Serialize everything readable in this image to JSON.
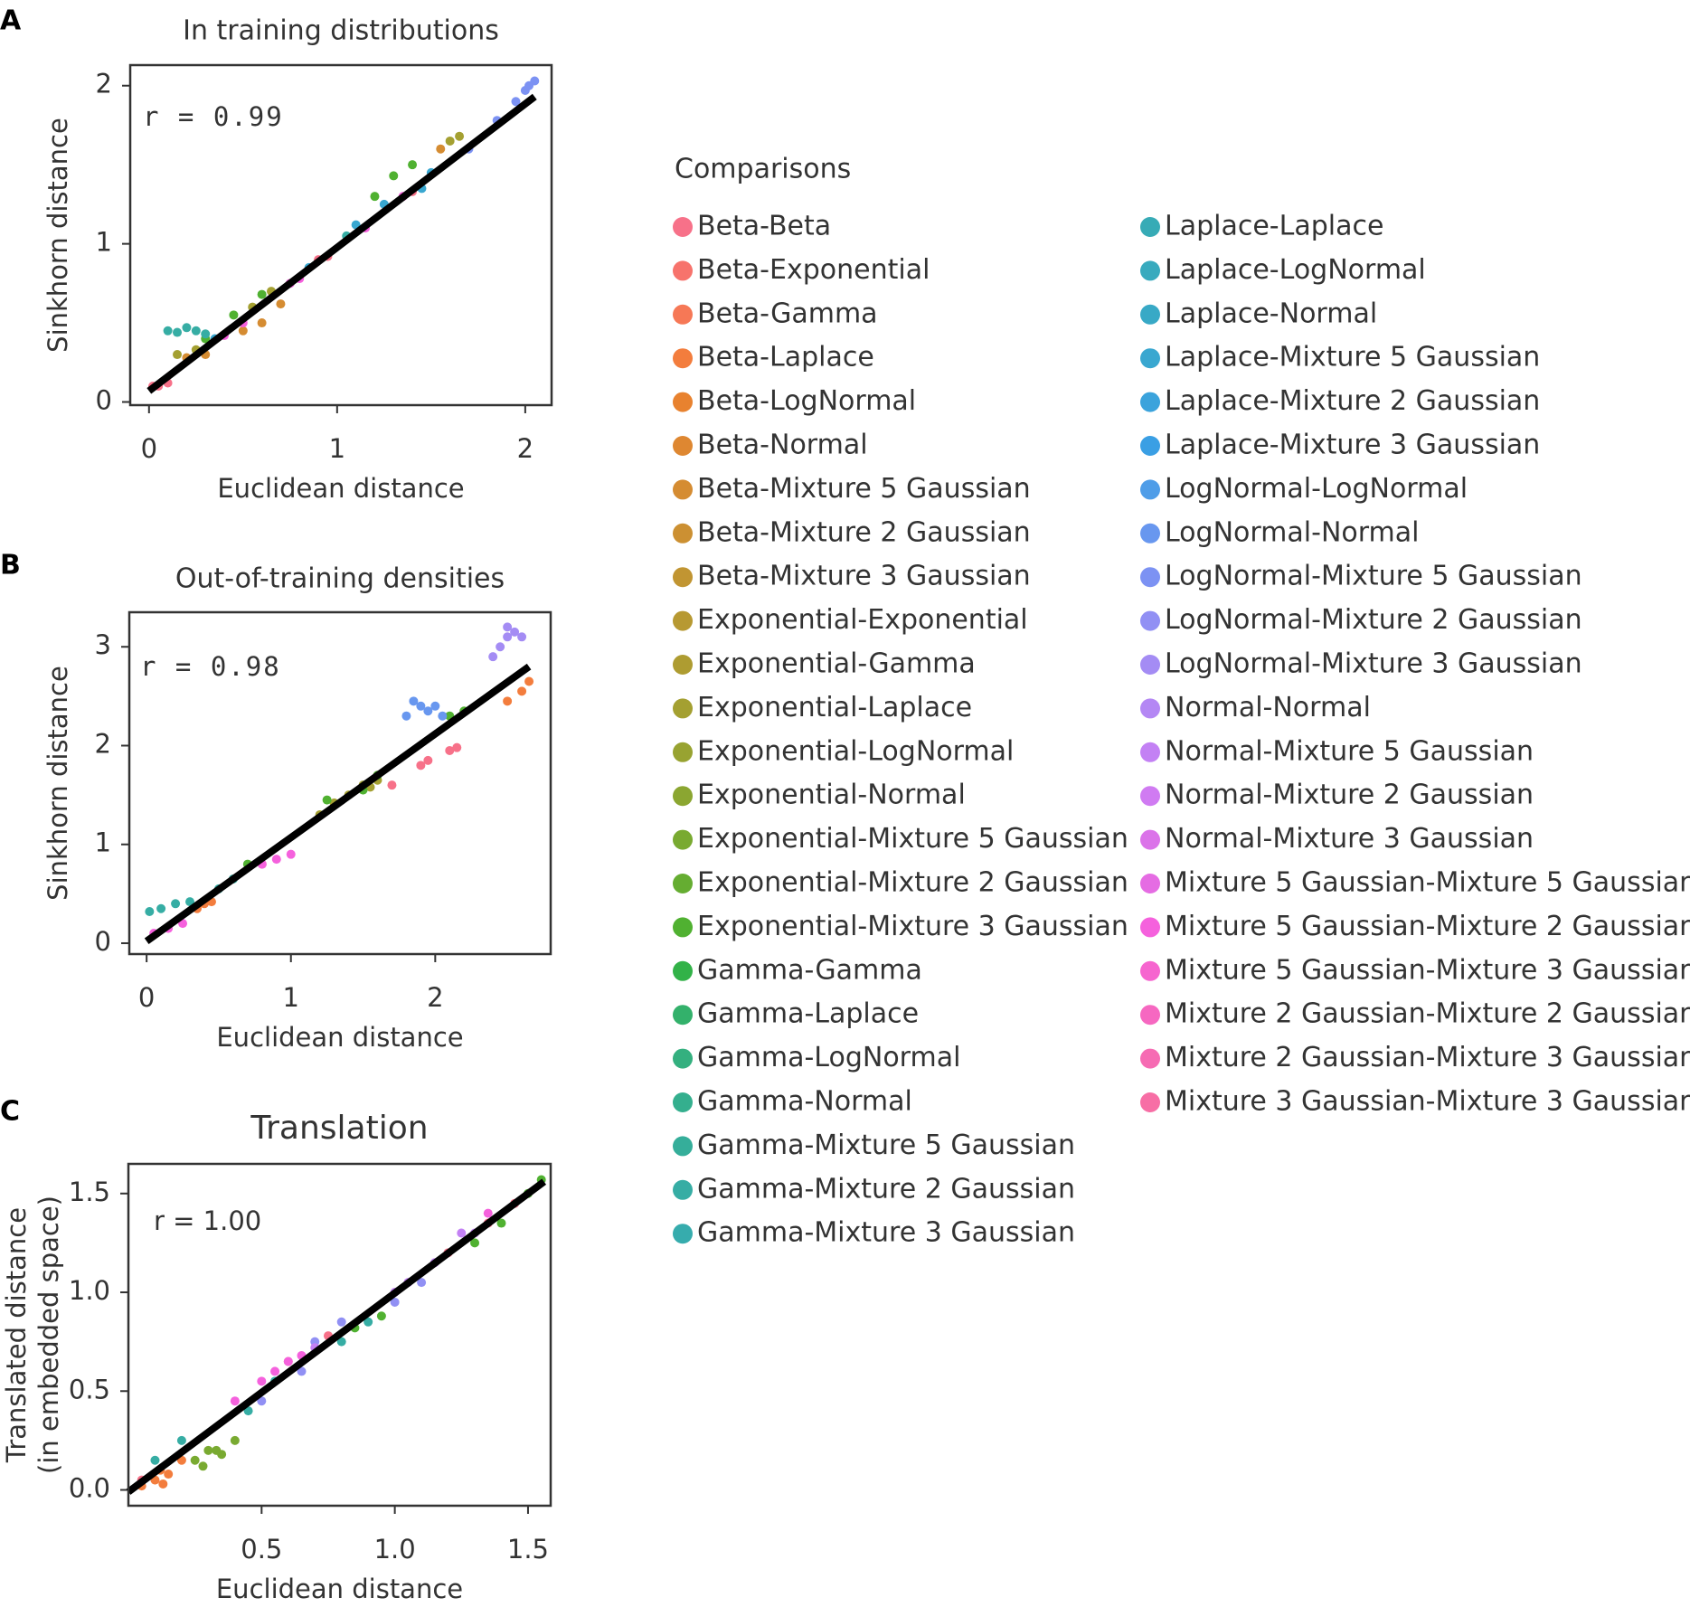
{
  "chart_data": [
    {
      "type": "scatter",
      "panel": "A",
      "title": "In training distributions",
      "xlabel": "Euclidean distance",
      "ylabel": [
        "Sinkhorn distance"
      ],
      "annotation": "r =  0.99",
      "xlim": [
        -0.1,
        2.14
      ],
      "ylim": [
        -0.02,
        2.13
      ],
      "xticks": [
        0,
        1,
        2
      ],
      "yticks": [
        0,
        1,
        2
      ],
      "fit_line": {
        "x": [
          0,
          2.05
        ],
        "y": [
          0.07,
          1.93
        ]
      },
      "series": [
        {
          "color": "#f77189",
          "x": [
            0.02,
            0.05,
            0.1,
            0.9,
            0.95,
            1.4
          ],
          "y": [
            0.1,
            0.1,
            0.12,
            0.9,
            0.92,
            1.33
          ]
        },
        {
          "color": "#d58c32",
          "x": [
            0.2,
            0.3,
            0.5,
            0.6,
            0.7,
            1.55
          ],
          "y": [
            0.28,
            0.3,
            0.45,
            0.5,
            0.62,
            1.6
          ]
        },
        {
          "color": "#a4a031",
          "x": [
            0.15,
            0.25,
            0.55,
            0.65,
            1.6,
            1.65
          ],
          "y": [
            0.3,
            0.33,
            0.6,
            0.7,
            1.65,
            1.68
          ]
        },
        {
          "color": "#50b131",
          "x": [
            0.3,
            0.45,
            0.6,
            1.2,
            1.3,
            1.4
          ],
          "y": [
            0.4,
            0.55,
            0.68,
            1.3,
            1.43,
            1.5
          ]
        },
        {
          "color": "#36ada4",
          "x": [
            0.1,
            0.15,
            0.2,
            0.25,
            0.3,
            1.05
          ],
          "y": [
            0.45,
            0.44,
            0.47,
            0.45,
            0.43,
            1.05
          ]
        },
        {
          "color": "#39a7d0",
          "x": [
            0.35,
            0.85,
            1.1,
            1.25,
            1.45,
            1.5
          ],
          "y": [
            0.4,
            0.85,
            1.12,
            1.25,
            1.35,
            1.45
          ]
        },
        {
          "color": "#7c92f3",
          "x": [
            1.7,
            1.85,
            1.95,
            2.0,
            2.02,
            2.05
          ],
          "y": [
            1.6,
            1.78,
            1.9,
            1.97,
            2.0,
            2.03
          ]
        },
        {
          "color": "#f561dd",
          "x": [
            0.4,
            0.5,
            0.75,
            0.8,
            1.15,
            1.35
          ],
          "y": [
            0.42,
            0.5,
            0.75,
            0.78,
            1.1,
            1.3
          ]
        }
      ]
    },
    {
      "type": "scatter",
      "panel": "B",
      "title": "Out-of-training densities",
      "xlabel": "Euclidean distance",
      "ylabel": [
        "Sinkhorn distance"
      ],
      "annotation": "r =  0.98",
      "xlim": [
        -0.12,
        2.8
      ],
      "ylim": [
        -0.11,
        3.35
      ],
      "xticks": [
        0,
        1,
        2
      ],
      "yticks": [
        0,
        1,
        2,
        3
      ],
      "fit_line": {
        "x": [
          0,
          2.65
        ],
        "y": [
          0.02,
          2.8
        ]
      },
      "series": [
        {
          "color": "#f77189",
          "x": [
            1.9,
            1.95,
            2.1,
            2.15,
            0.8,
            1.7
          ],
          "y": [
            1.8,
            1.85,
            1.95,
            1.98,
            0.8,
            1.6
          ]
        },
        {
          "color": "#f37d3d",
          "x": [
            0.4,
            0.45,
            2.5,
            2.6,
            2.65,
            0.35
          ],
          "y": [
            0.4,
            0.42,
            2.45,
            2.55,
            2.65,
            0.35
          ]
        },
        {
          "color": "#a4a031",
          "x": [
            1.2,
            1.3,
            1.4,
            1.5,
            1.55,
            1.6
          ],
          "y": [
            1.3,
            1.42,
            1.5,
            1.6,
            1.58,
            1.65
          ]
        },
        {
          "color": "#50b131",
          "x": [
            1.5,
            1.6,
            2.1,
            2.2,
            0.7,
            1.25
          ],
          "y": [
            1.55,
            1.7,
            2.3,
            2.35,
            0.8,
            1.45
          ]
        },
        {
          "color": "#36ada4",
          "x": [
            0.02,
            0.1,
            0.2,
            0.3,
            0.5,
            0.6
          ],
          "y": [
            0.32,
            0.35,
            0.4,
            0.42,
            0.55,
            0.65
          ]
        },
        {
          "color": "#6897ef",
          "x": [
            1.8,
            1.85,
            1.9,
            1.95,
            2.0,
            2.05
          ],
          "y": [
            2.3,
            2.45,
            2.4,
            2.35,
            2.4,
            2.3
          ]
        },
        {
          "color": "#a48cf4",
          "x": [
            2.4,
            2.45,
            2.5,
            2.55,
            2.6,
            2.5
          ],
          "y": [
            2.9,
            3.0,
            3.1,
            3.15,
            3.1,
            3.2
          ]
        },
        {
          "color": "#f561dd",
          "x": [
            0.8,
            0.9,
            1.0,
            0.05,
            0.15,
            0.25
          ],
          "y": [
            0.8,
            0.85,
            0.9,
            0.1,
            0.15,
            0.2
          ]
        }
      ]
    },
    {
      "type": "scatter",
      "panel": "C",
      "title": "Translation",
      "xlabel": "Euclidean distance",
      "ylabel": [
        "Translated distance",
        "(in embedded space)"
      ],
      "annotation": "r = 1.00",
      "xlim": [
        0.0,
        1.585
      ],
      "ylim": [
        -0.08,
        1.65
      ],
      "xticks": [
        {
          "value": 0.5,
          "label": "0.5"
        },
        {
          "value": 1.0,
          "label": "1.0"
        },
        {
          "value": 1.5,
          "label": "1.5"
        }
      ],
      "yticks": [
        {
          "value": 0.0,
          "label": "0.0"
        },
        {
          "value": 0.5,
          "label": "0.5"
        },
        {
          "value": 1.0,
          "label": "1.0"
        },
        {
          "value": 1.5,
          "label": "1.5"
        }
      ],
      "fit_line": {
        "x": [
          0,
          1.56
        ],
        "y": [
          -0.01,
          1.56
        ]
      },
      "series": [
        {
          "color": "#f77189",
          "x": [
            0.05,
            0.6,
            0.75,
            1.2,
            1.35,
            1.45
          ],
          "y": [
            0.05,
            0.65,
            0.78,
            1.2,
            1.35,
            1.45
          ]
        },
        {
          "color": "#f37d3d",
          "x": [
            0.1,
            0.13,
            0.15,
            0.12,
            0.2,
            0.05
          ],
          "y": [
            0.05,
            0.03,
            0.08,
            0.1,
            0.15,
            0.02
          ]
        },
        {
          "color": "#79aa31",
          "x": [
            0.25,
            0.3,
            0.35,
            0.4,
            0.28,
            0.33
          ],
          "y": [
            0.15,
            0.2,
            0.18,
            0.25,
            0.12,
            0.2
          ]
        },
        {
          "color": "#50b131",
          "x": [
            0.85,
            0.95,
            1.3,
            1.4,
            1.5,
            1.55
          ],
          "y": [
            0.82,
            0.88,
            1.25,
            1.35,
            1.5,
            1.57
          ]
        },
        {
          "color": "#36ada4",
          "x": [
            0.1,
            0.2,
            0.45,
            0.55,
            0.8,
            0.9
          ],
          "y": [
            0.15,
            0.25,
            0.4,
            0.55,
            0.75,
            0.85
          ]
        },
        {
          "color": "#9190f4",
          "x": [
            0.5,
            0.65,
            0.7,
            0.8,
            1.0,
            1.1
          ],
          "y": [
            0.45,
            0.6,
            0.75,
            0.85,
            0.95,
            1.05
          ]
        },
        {
          "color": "#c381f4",
          "x": [
            1.0,
            1.05,
            1.15,
            1.25,
            1.3,
            0.7
          ],
          "y": [
            1.0,
            1.05,
            1.15,
            1.3,
            1.3,
            0.72
          ]
        },
        {
          "color": "#f561dd",
          "x": [
            0.55,
            0.6,
            0.65,
            1.35,
            0.4,
            0.5
          ],
          "y": [
            0.6,
            0.65,
            0.68,
            1.4,
            0.45,
            0.55
          ]
        }
      ]
    }
  ],
  "legend": {
    "title": "Comparisons",
    "entries": [
      {
        "name": "Beta-Beta",
        "color": "#f77189"
      },
      {
        "name": "Beta-Exponential",
        "color": "#f7736c"
      },
      {
        "name": "Beta-Gamma",
        "color": "#f67856"
      },
      {
        "name": "Beta-Laplace",
        "color": "#f37d3d"
      },
      {
        "name": "Beta-LogNormal",
        "color": "#e8822f"
      },
      {
        "name": "Beta-Normal",
        "color": "#de8731"
      },
      {
        "name": "Beta-Mixture 5 Gaussian",
        "color": "#d58c32"
      },
      {
        "name": "Beta-Mixture 2 Gaussian",
        "color": "#cc9032"
      },
      {
        "name": "Beta-Mixture 3 Gaussian",
        "color": "#c19532"
      },
      {
        "name": "Exponential-Exponential",
        "color": "#b79932"
      },
      {
        "name": "Exponential-Gamma",
        "color": "#ae9c31"
      },
      {
        "name": "Exponential-Laplace",
        "color": "#a4a031"
      },
      {
        "name": "Exponential-LogNormal",
        "color": "#98a331"
      },
      {
        "name": "Exponential-Normal",
        "color": "#8ba631"
      },
      {
        "name": "Exponential-Mixture 5 Gaussian",
        "color": "#79aa31"
      },
      {
        "name": "Exponential-Mixture 2 Gaussian",
        "color": "#65ad31"
      },
      {
        "name": "Exponential-Mixture 3 Gaussian",
        "color": "#50b131"
      },
      {
        "name": "Gamma-Gamma",
        "color": "#32b248"
      },
      {
        "name": "Gamma-Laplace",
        "color": "#33b16b"
      },
      {
        "name": "Gamma-LogNormal",
        "color": "#34b07f"
      },
      {
        "name": "Gamma-Normal",
        "color": "#34af8e"
      },
      {
        "name": "Gamma-Mixture 5 Gaussian",
        "color": "#35ae9a"
      },
      {
        "name": "Gamma-Mixture 2 Gaussian",
        "color": "#36ada4"
      },
      {
        "name": "Gamma-Mixture 3 Gaussian",
        "color": "#36acad"
      },
      {
        "name": "Laplace-Laplace",
        "color": "#37abb6"
      },
      {
        "name": "Laplace-LogNormal",
        "color": "#38aabe"
      },
      {
        "name": "Laplace-Normal",
        "color": "#38a9c6"
      },
      {
        "name": "Laplace-Mixture 5 Gaussian",
        "color": "#39a7d0"
      },
      {
        "name": "Laplace-Mixture 2 Gaussian",
        "color": "#3ba3dc"
      },
      {
        "name": "Laplace-Mixture 3 Gaussian",
        "color": "#3a9fe4"
      },
      {
        "name": "LogNormal-LogNormal",
        "color": "#4f9de8"
      },
      {
        "name": "LogNormal-Normal",
        "color": "#6897ef"
      },
      {
        "name": "LogNormal-Mixture 5 Gaussian",
        "color": "#7c92f3"
      },
      {
        "name": "LogNormal-Mixture 2 Gaussian",
        "color": "#9190f4"
      },
      {
        "name": "LogNormal-Mixture 3 Gaussian",
        "color": "#a48cf4"
      },
      {
        "name": "Normal-Normal",
        "color": "#b487f4"
      },
      {
        "name": "Normal-Mixture 5 Gaussian",
        "color": "#c381f4"
      },
      {
        "name": "Normal-Mixture 2 Gaussian",
        "color": "#d07bf2"
      },
      {
        "name": "Normal-Mixture 3 Gaussian",
        "color": "#db73e9"
      },
      {
        "name": "Mixture 5 Gaussian-Mixture 5 Gaussian",
        "color": "#e56ce3"
      },
      {
        "name": "Mixture 5 Gaussian-Mixture 2 Gaussian",
        "color": "#f561dd"
      },
      {
        "name": "Mixture 5 Gaussian-Mixture 3 Gaussian",
        "color": "#f665cf"
      },
      {
        "name": "Mixture 2 Gaussian-Mixture 2 Gaussian",
        "color": "#f668c1"
      },
      {
        "name": "Mixture 2 Gaussian-Mixture 3 Gaussian",
        "color": "#f66bb3"
      },
      {
        "name": "Mixture 3 Gaussian-Mixture 3 Gaussian",
        "color": "#f76ea5"
      }
    ]
  }
}
